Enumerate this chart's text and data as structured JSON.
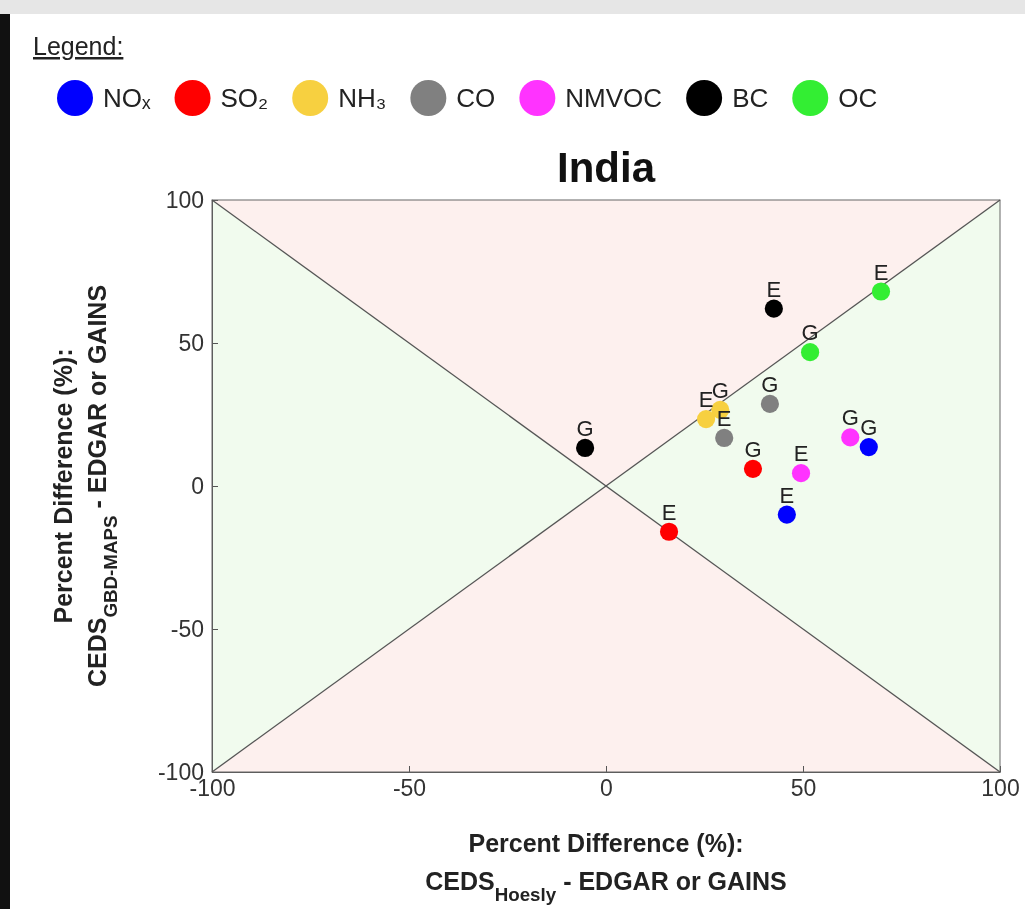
{
  "chart_data": {
    "type": "scatter",
    "title": "India",
    "legend_title": "Legend:",
    "legend": "top",
    "marker": "circle",
    "xlabel": "Percent Difference (%):\nCEDS$_{Hoesly}$ - EDGAR or GAINS",
    "ylabel": "Percent Difference (%):\nCEDS$_{GBD-MAPS}$ - EDGAR or GAINS",
    "xlim": [
      -100,
      100
    ],
    "ylim": [
      -100,
      100
    ],
    "xticks": [
      -100,
      -50,
      0,
      50,
      100
    ],
    "yticks": [
      -100,
      -50,
      0,
      50,
      100
    ],
    "series": [
      {
        "type": "line",
        "marker": "none",
        "color": "#555555",
        "x": [
          -100,
          100
        ],
        "values": [
          -100,
          100
        ]
      },
      {
        "type": "line",
        "marker": "none",
        "color": "#555555",
        "x": [
          -100,
          100
        ],
        "values": [
          100,
          -100
        ]
      },
      {
        "name": "NOₓ",
        "color": "#0000ff",
        "x": [
          45.9,
          66.7
        ],
        "values": [
          -10,
          13.6
        ]
      },
      {
        "name": "SO₂",
        "color": "#ff0000",
        "x": [
          16,
          37.3
        ],
        "values": [
          -16,
          6
        ]
      },
      {
        "name": "NH₃",
        "color": "#f7d040",
        "x": [
          25.4,
          29
        ],
        "values": [
          23.4,
          26.6
        ]
      },
      {
        "name": "CO",
        "color": "#808080",
        "x": [
          30,
          41.6
        ],
        "values": [
          16.8,
          28.7
        ]
      },
      {
        "name": "NMVOC",
        "color": "#ff33ff",
        "x": [
          49.5,
          62
        ],
        "values": [
          4.5,
          17
        ]
      },
      {
        "name": "BC",
        "color": "#000000",
        "x": [
          42.6,
          -5.3
        ],
        "values": [
          62,
          13.3
        ]
      },
      {
        "name": "OC",
        "color": "#33ee33",
        "x": [
          69.8,
          51.8
        ],
        "values": [
          68,
          46.8
        ]
      }
    ],
    "annotations": [
      {
        "text": "E",
        "x": 45.9,
        "y": -10
      },
      {
        "text": "G",
        "x": 66.7,
        "y": 13.6
      },
      {
        "text": "E",
        "x": 16,
        "y": -16
      },
      {
        "text": "G",
        "x": 37.3,
        "y": 6
      },
      {
        "text": "E",
        "x": 25.4,
        "y": 23.4
      },
      {
        "text": "G",
        "x": 29,
        "y": 26.6
      },
      {
        "text": "E",
        "x": 30,
        "y": 16.8
      },
      {
        "text": "G",
        "x": 41.6,
        "y": 28.7
      },
      {
        "text": "E",
        "x": 49.5,
        "y": 4.5
      },
      {
        "text": "G",
        "x": 62,
        "y": 17
      },
      {
        "text": "E",
        "x": 42.6,
        "y": 62
      },
      {
        "text": "G",
        "x": -5.3,
        "y": 13.3
      },
      {
        "text": "E",
        "x": 69.8,
        "y": 68
      },
      {
        "text": "G",
        "x": 51.8,
        "y": 46.8
      }
    ]
  }
}
